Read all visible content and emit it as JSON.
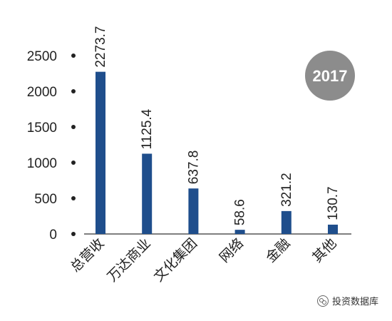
{
  "chart_data": {
    "type": "bar",
    "categories": [
      "总营收",
      "万达商业",
      "文化集团",
      "网络",
      "金融",
      "其他"
    ],
    "values": [
      2273.7,
      1125.4,
      637.8,
      58.6,
      321.2,
      130.7
    ],
    "value_labels": [
      "2273.7",
      "1125.4",
      "637.8",
      "58.6",
      "321.2",
      "130.7"
    ],
    "yticks": [
      0,
      500,
      1000,
      1500,
      2000,
      2500
    ],
    "ylim": [
      0,
      2500
    ],
    "bar_color": "#1f4e8c",
    "grid": false,
    "badge": {
      "text": "2017",
      "color": "#8c8c8c"
    }
  },
  "watermark": {
    "text": "投资数据库",
    "icon": "wechat-icon"
  }
}
